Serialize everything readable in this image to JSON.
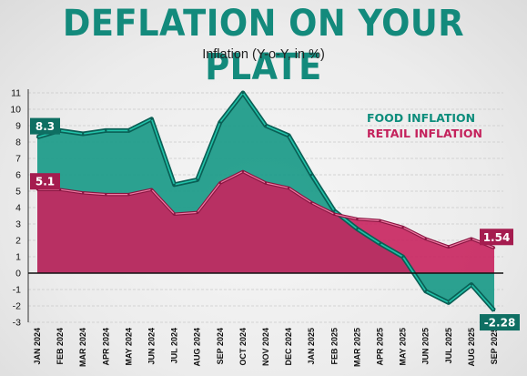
{
  "header": {
    "title": "DEFLATION ON YOUR PLATE",
    "subtitle": "Inflation (Y-o-Y, in %)"
  },
  "chart_data": {
    "type": "area",
    "title": "DEFLATION ON YOUR PLATE",
    "subtitle": "Inflation (Y-o-Y, in %)",
    "xlabel": "",
    "ylabel": "",
    "ylim": [
      -3,
      11
    ],
    "yticks": [
      "-3",
      "-2",
      "-1",
      "0",
      "1",
      "2",
      "3",
      "4",
      "5",
      "6",
      "7",
      "8",
      "9",
      "10",
      "11"
    ],
    "categories": [
      "JAN 2024",
      "FEB 2024",
      "MAR 2024",
      "APR 2024",
      "MAY 2024",
      "JUN 2024",
      "JUL 2024",
      "AUG 2024",
      "SEP 2024",
      "OCT 2024",
      "NOV 2024",
      "DEC 2024",
      "JAN 2025",
      "FEB 2025",
      "MAR 2025",
      "APR 2025",
      "MAY 2025",
      "JUN 2025",
      "JUL 2025",
      "AUG 2025",
      "SEP 2025"
    ],
    "series": [
      {
        "name": "FOOD INFLATION",
        "color": "#1a9a88",
        "values": [
          8.3,
          8.7,
          8.5,
          8.7,
          8.7,
          9.4,
          5.4,
          5.7,
          9.2,
          11.0,
          9.0,
          8.4,
          6.0,
          3.8,
          2.7,
          1.8,
          1.0,
          -1.1,
          -1.8,
          -0.7,
          -2.28
        ]
      },
      {
        "name": "RETAIL INFLATION",
        "color": "#c8245e",
        "values": [
          5.1,
          5.1,
          4.9,
          4.8,
          4.8,
          5.1,
          3.6,
          3.7,
          5.5,
          6.2,
          5.5,
          5.2,
          4.3,
          3.6,
          3.3,
          3.2,
          2.8,
          2.1,
          1.6,
          2.1,
          1.54
        ]
      }
    ],
    "annotations": {
      "food_first": "8.3",
      "retail_first": "5.1",
      "retail_last": "1.54",
      "food_last": "-2.28"
    },
    "grid": true,
    "legend_position": "top-right"
  }
}
